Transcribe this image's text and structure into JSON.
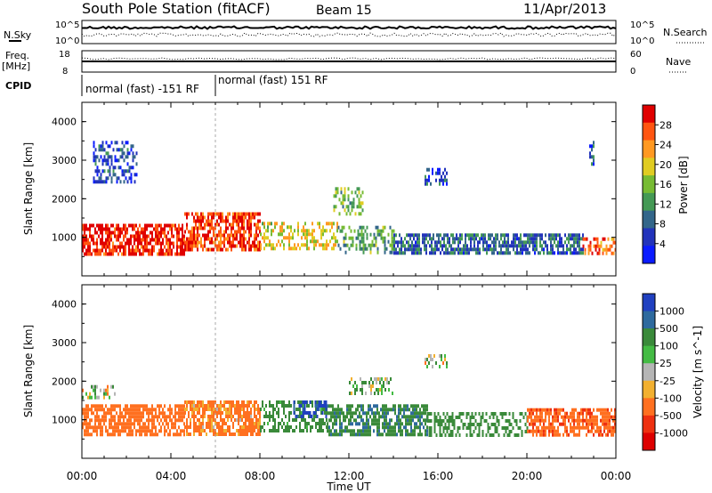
{
  "header": {
    "title": "South Pole Station (fitACF)",
    "beam": "Beam 15",
    "date": "11/Apr/2013"
  },
  "noise_panel": {
    "left_label": "N.Sky",
    "right_label": "N.Search",
    "left_ticks": [
      "10^5",
      "10^0"
    ],
    "right_ticks": [
      "10^5",
      "10^0"
    ]
  },
  "freq_panel": {
    "left_label": "Freq.",
    "left_unit": "[MHz]",
    "right_label": "Nave",
    "left_ticks": [
      "18",
      "8"
    ],
    "right_ticks": [
      "60",
      "0"
    ]
  },
  "cpid": {
    "label": "CPID",
    "segments": [
      {
        "text": "normal (fast) -151 RF",
        "start_hour": 0,
        "end_hour": 6
      },
      {
        "text": "normal (fast) 151 RF",
        "start_hour": 6,
        "end_hour": 24
      }
    ]
  },
  "colors": {
    "power_scale": [
      "#0a1bff",
      "#2233bb",
      "#33668a",
      "#449955",
      "#77bb33",
      "#e0cc22",
      "#ff9922",
      "#ff5511",
      "#e00000"
    ],
    "velocity_scale": [
      "#2040c0",
      "#2e6a9e",
      "#3a8a3a",
      "#44bb44",
      "#b5b5b5",
      "#f2b030",
      "#ff7020",
      "#ee3010",
      "#dd0000"
    ]
  },
  "chart_data": [
    {
      "type": "heatmap",
      "name": "power",
      "xlabel": "",
      "ylabel": "Slant Range [km]",
      "xlim": [
        0,
        24
      ],
      "ylim": [
        0,
        4500
      ],
      "yticks": [
        1000,
        2000,
        3000,
        4000
      ],
      "colorbar": {
        "label": "Power [dB]",
        "ticks": [
          "4",
          "8",
          "12",
          "16",
          "20",
          "24",
          "28"
        ],
        "range": [
          0,
          30
        ]
      },
      "features": [
        {
          "hours": [
            0.0,
            4.6
          ],
          "range_km": [
            600,
            1350
          ],
          "value_db": 28
        },
        {
          "hours": [
            4.6,
            8.0
          ],
          "range_km": [
            650,
            1650
          ],
          "value_db": 26
        },
        {
          "hours": [
            8.0,
            11.5
          ],
          "range_km": [
            700,
            1400
          ],
          "value_db": 18
        },
        {
          "hours": [
            11.5,
            14.0
          ],
          "range_km": [
            600,
            1300
          ],
          "value_db": 12
        },
        {
          "hours": [
            14.0,
            22.5
          ],
          "range_km": [
            600,
            1100
          ],
          "value_db": 8
        },
        {
          "hours": [
            22.5,
            24.0
          ],
          "range_km": [
            600,
            1000
          ],
          "value_db": 24
        },
        {
          "hours": [
            0.5,
            2.5
          ],
          "range_km": [
            2400,
            3500
          ],
          "value_db": 6
        },
        {
          "hours": [
            15.4,
            16.4
          ],
          "range_km": [
            2400,
            2800
          ],
          "value_db": 6
        },
        {
          "hours": [
            11.3,
            12.6
          ],
          "range_km": [
            1600,
            2300
          ],
          "value_db": 14
        },
        {
          "hours": [
            22.8,
            23.0
          ],
          "range_km": [
            2900,
            3500
          ],
          "value_db": 6
        }
      ]
    },
    {
      "type": "heatmap",
      "name": "velocity",
      "xlabel": "Time UT",
      "ylabel": "Slant Range [km]",
      "xlim": [
        0,
        24
      ],
      "ylim": [
        0,
        4500
      ],
      "xticks": [
        "00:00",
        "04:00",
        "08:00",
        "12:00",
        "16:00",
        "20:00",
        "00:00"
      ],
      "yticks": [
        1000,
        2000,
        3000,
        4000
      ],
      "colorbar": {
        "label": "Velocity [m s^-1]",
        "ticks": [
          "1000",
          "500",
          "100",
          "25",
          "-25",
          "-100",
          "-500",
          "-1000"
        ]
      },
      "features": [
        {
          "hours": [
            0.0,
            4.6
          ],
          "range_km": [
            600,
            1400
          ],
          "value_ms": -200
        },
        {
          "hours": [
            4.6,
            8.0
          ],
          "range_km": [
            600,
            1500
          ],
          "value_ms": -120
        },
        {
          "hours": [
            8.0,
            11.0
          ],
          "range_km": [
            700,
            1500
          ],
          "value_ms": 150
        },
        {
          "hours": [
            9.5,
            11.0
          ],
          "range_km": [
            1100,
            1500
          ],
          "value_ms": 800
        },
        {
          "hours": [
            11.0,
            15.5
          ],
          "range_km": [
            600,
            1400
          ],
          "value_ms": 250
        },
        {
          "hours": [
            12.0,
            14.0
          ],
          "range_km": [
            1700,
            2100
          ],
          "value_ms": 60
        },
        {
          "hours": [
            15.5,
            20.0
          ],
          "range_km": [
            600,
            1200
          ],
          "value_ms": 200
        },
        {
          "hours": [
            20.0,
            24.0
          ],
          "range_km": [
            600,
            1300
          ],
          "value_ms": -250
        },
        {
          "hours": [
            0.0,
            1.5
          ],
          "range_km": [
            1600,
            1900
          ],
          "value_ms": 0
        },
        {
          "hours": [
            15.4,
            16.4
          ],
          "range_km": [
            2400,
            2700
          ],
          "value_ms": 0
        }
      ]
    }
  ]
}
